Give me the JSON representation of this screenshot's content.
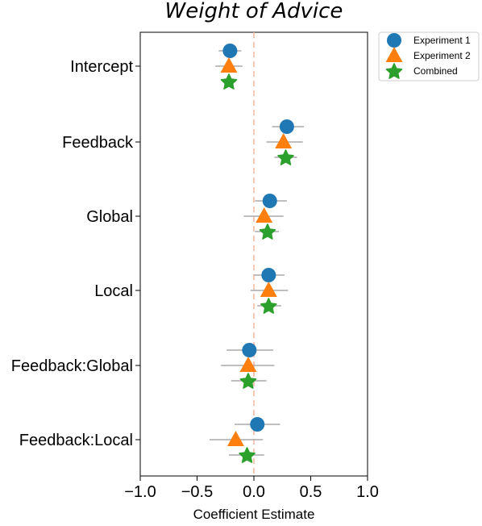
{
  "chart_data": {
    "type": "scatter",
    "title": "Weight of Advice",
    "xlabel": "Coefficient Estimate",
    "ylabel": "",
    "xlim": [
      -1.0,
      1.0
    ],
    "xticks": [
      "−1.0",
      "−0.5",
      "0.0",
      "0.5",
      "1.0"
    ],
    "xtick_values": [
      -1.0,
      -0.5,
      0.0,
      0.5,
      1.0
    ],
    "reference_line": {
      "x": 0.0,
      "style": "dashed",
      "color": "#f4b8a4"
    },
    "categories": [
      "Intercept",
      "Feedback",
      "Global",
      "Local",
      "Feedback:Global",
      "Feedback:Local"
    ],
    "legend_position": "outside-top-right",
    "grid": false,
    "errorbar_color": "#aaaaaa",
    "series": [
      {
        "name": "Experiment 1",
        "marker": "circle",
        "color": "#1f77b4",
        "estimates": [
          -0.21,
          0.29,
          0.14,
          0.13,
          -0.04,
          0.03
        ],
        "ci_low": [
          -0.31,
          0.16,
          0.01,
          0.0,
          -0.24,
          -0.17
        ],
        "ci_high": [
          -0.11,
          0.44,
          0.29,
          0.27,
          0.17,
          0.23
        ]
      },
      {
        "name": "Experiment 2",
        "marker": "triangle",
        "color": "#ff7f0e",
        "estimates": [
          -0.22,
          0.26,
          0.09,
          0.13,
          -0.05,
          -0.16
        ],
        "ci_low": [
          -0.34,
          0.11,
          -0.09,
          -0.03,
          -0.29,
          -0.39
        ],
        "ci_high": [
          -0.1,
          0.43,
          0.26,
          0.3,
          0.18,
          0.08
        ]
      },
      {
        "name": "Combined",
        "marker": "star",
        "color": "#2ca02c",
        "estimates": [
          -0.22,
          0.28,
          0.12,
          0.13,
          -0.05,
          -0.06
        ],
        "ci_low": [
          -0.27,
          0.18,
          0.01,
          0.03,
          -0.2,
          -0.22
        ],
        "ci_high": [
          -0.16,
          0.38,
          0.22,
          0.24,
          0.11,
          0.09
        ]
      }
    ]
  }
}
